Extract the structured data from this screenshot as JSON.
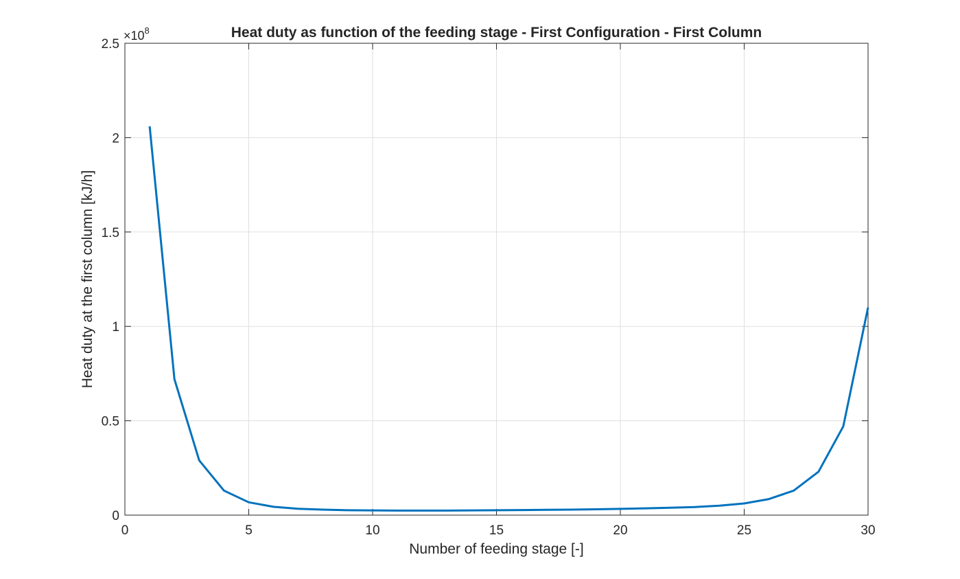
{
  "chart_data": {
    "type": "line",
    "title": "Heat duty as function of the feeding stage - First Configuration - First Column",
    "xlabel": "Number of feeding stage [-]",
    "ylabel": "Heat duty at the first column [kJ/h]",
    "xlim": [
      0,
      30
    ],
    "ylim": [
      0,
      2.5
    ],
    "y_exponent_base": "×10",
    "y_exponent_power": "8",
    "xticks": [
      0,
      5,
      10,
      15,
      20,
      25,
      30
    ],
    "xtick_labels": [
      "0",
      "5",
      "10",
      "15",
      "20",
      "25",
      "30"
    ],
    "yticks": [
      0,
      0.5,
      1,
      1.5,
      2,
      2.5
    ],
    "ytick_labels": [
      "0",
      "0.5",
      "1",
      "1.5",
      "2",
      "2.5"
    ],
    "grid": true,
    "series": [
      {
        "color": "#0072bd",
        "x": [
          1,
          2,
          3,
          4,
          5,
          6,
          7,
          8,
          9,
          10,
          11,
          12,
          13,
          14,
          15,
          16,
          17,
          18,
          19,
          20,
          21,
          22,
          23,
          24,
          25,
          26,
          27,
          28,
          29,
          30
        ],
        "y": [
          2.06,
          0.72,
          0.29,
          0.13,
          0.068,
          0.044,
          0.034,
          0.029,
          0.026,
          0.025,
          0.024,
          0.024,
          0.024,
          0.025,
          0.026,
          0.027,
          0.028,
          0.029,
          0.031,
          0.033,
          0.036,
          0.039,
          0.043,
          0.05,
          0.062,
          0.085,
          0.13,
          0.23,
          0.47,
          1.1
        ]
      }
    ]
  }
}
